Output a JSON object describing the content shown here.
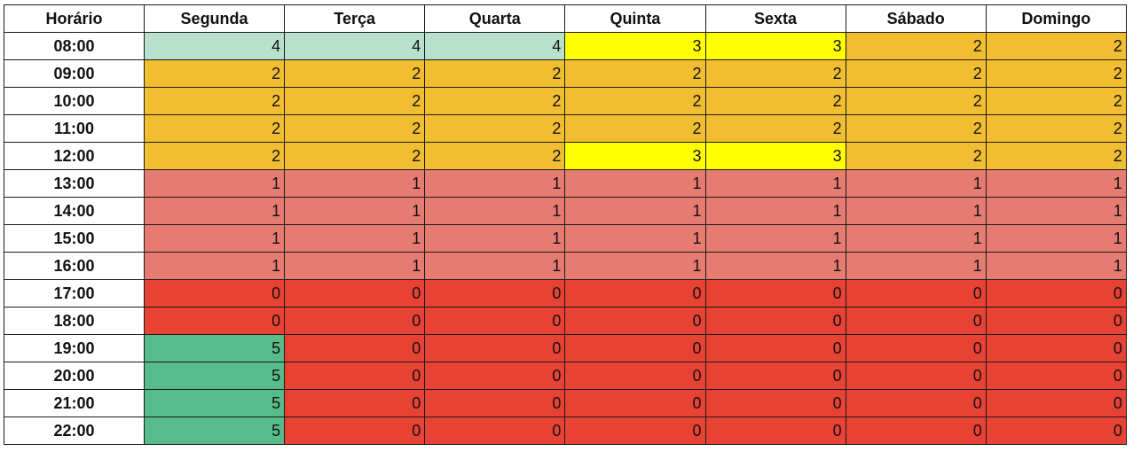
{
  "table": {
    "headers": [
      "Horário",
      "Segunda",
      "Terça",
      "Quarta",
      "Quinta",
      "Sexta",
      "Sábado",
      "Domingo"
    ],
    "rows": [
      {
        "time": "08:00",
        "values": [
          4,
          4,
          4,
          3,
          3,
          2,
          2
        ]
      },
      {
        "time": "09:00",
        "values": [
          2,
          2,
          2,
          2,
          2,
          2,
          2
        ]
      },
      {
        "time": "10:00",
        "values": [
          2,
          2,
          2,
          2,
          2,
          2,
          2
        ]
      },
      {
        "time": "11:00",
        "values": [
          2,
          2,
          2,
          2,
          2,
          2,
          2
        ]
      },
      {
        "time": "12:00",
        "values": [
          2,
          2,
          2,
          3,
          3,
          2,
          2
        ]
      },
      {
        "time": "13:00",
        "values": [
          1,
          1,
          1,
          1,
          1,
          1,
          1
        ]
      },
      {
        "time": "14:00",
        "values": [
          1,
          1,
          1,
          1,
          1,
          1,
          1
        ]
      },
      {
        "time": "15:00",
        "values": [
          1,
          1,
          1,
          1,
          1,
          1,
          1
        ]
      },
      {
        "time": "16:00",
        "values": [
          1,
          1,
          1,
          1,
          1,
          1,
          1
        ]
      },
      {
        "time": "17:00",
        "values": [
          0,
          0,
          0,
          0,
          0,
          0,
          0
        ]
      },
      {
        "time": "18:00",
        "values": [
          0,
          0,
          0,
          0,
          0,
          0,
          0
        ]
      },
      {
        "time": "19:00",
        "values": [
          5,
          0,
          0,
          0,
          0,
          0,
          0
        ]
      },
      {
        "time": "20:00",
        "values": [
          5,
          0,
          0,
          0,
          0,
          0,
          0
        ]
      },
      {
        "time": "21:00",
        "values": [
          5,
          0,
          0,
          0,
          0,
          0,
          0
        ]
      },
      {
        "time": "22:00",
        "values": [
          5,
          0,
          0,
          0,
          0,
          0,
          0
        ]
      }
    ]
  },
  "colors": {
    "0": "#e84235",
    "1": "#e67b72",
    "2": "#f1be32",
    "3": "#ffff00",
    "4": "#b7e0cd",
    "5": "#57bb8a"
  }
}
